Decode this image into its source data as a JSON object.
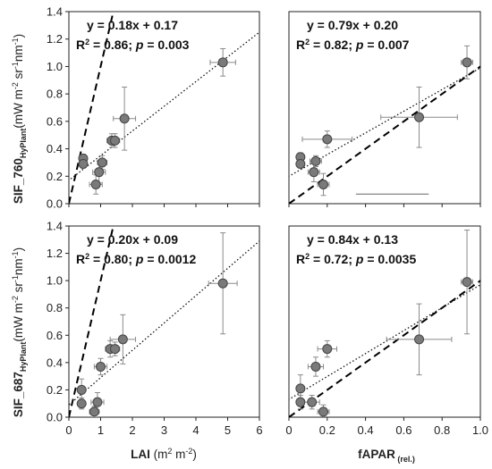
{
  "figure": {
    "y_axis_label_top": {
      "main": "SIF_760",
      "sub": "HyPlant",
      "units": "(mW m",
      "u2": "-2",
      "u3": " sr",
      "u4": "-1",
      "u5": "nm",
      "u6": "-1",
      "u7": ")"
    },
    "y_axis_label_bottom": {
      "main": "SIF_687",
      "sub": "HyPlant",
      "units": "(mW m",
      "u2": "-2",
      "u3": " sr",
      "u4": "-1",
      "u5": "nm",
      "u6": "-1",
      "u7": ")"
    },
    "x_axis_label_left": {
      "main": "LAI",
      "units": " (m",
      "u2": "2",
      "u3": " m",
      "u4": "-2",
      "u5": ")"
    },
    "x_axis_label_right": {
      "main": "fAPAR",
      "sub": " (rel.)"
    }
  },
  "chart_data": [
    {
      "type": "scatter",
      "panel": "top-left",
      "x_key": "LAI",
      "xlim": [
        0,
        6
      ],
      "xticks": [
        0,
        1,
        2,
        3,
        4,
        5,
        6
      ],
      "ylim": [
        0,
        1.4
      ],
      "yticks": [
        "0.0",
        "0.2",
        "0.4",
        "0.6",
        "0.8",
        "1.0",
        "1.2",
        "1.4"
      ],
      "show_x_ticks": false,
      "show_y_ticks": true,
      "equation": "y = 0.18x + 0.17",
      "stats": {
        "r2_prefix": "R",
        "r2_sup": "2",
        "r2_val": " = 0.86; ",
        "p_label": "p",
        "p_val": " = 0.003"
      },
      "one_to_one": true,
      "fit": {
        "slope": 0.18,
        "intercept": 0.17
      },
      "points": [
        {
          "x": 0.45,
          "y": 0.33,
          "xerr": 0.05,
          "yerr": 0.03
        },
        {
          "x": 0.45,
          "y": 0.29,
          "xerr": 0.05,
          "yerr": 0.03
        },
        {
          "x": 0.85,
          "y": 0.14,
          "xerr": 0.2,
          "yerr": 0.07
        },
        {
          "x": 0.95,
          "y": 0.23,
          "xerr": 0.2,
          "yerr": 0.08
        },
        {
          "x": 1.05,
          "y": 0.3,
          "xerr": 0.15,
          "yerr": 0.05
        },
        {
          "x": 1.35,
          "y": 0.46,
          "xerr": 0.15,
          "yerr": 0.05
        },
        {
          "x": 1.45,
          "y": 0.46,
          "xerr": 0.15,
          "yerr": 0.05
        },
        {
          "x": 1.75,
          "y": 0.62,
          "xerr": 0.35,
          "yerr": 0.23
        },
        {
          "x": 4.85,
          "y": 1.03,
          "xerr": 0.4,
          "yerr": 0.1
        }
      ]
    },
    {
      "type": "scatter",
      "panel": "top-right",
      "x_key": "fAPAR",
      "xlim": [
        0,
        1
      ],
      "xticks": [
        "0",
        "0.2",
        "0.4",
        "0.6",
        "0.8",
        "1.0"
      ],
      "ylim": [
        0,
        1.4
      ],
      "show_x_ticks": false,
      "show_y_ticks": false,
      "equation": "y = 0.79x + 0.20",
      "stats": {
        "r2_prefix": "R",
        "r2_sup": "2",
        "r2_val": " = 0.82; ",
        "p_label": "p",
        "p_val": " = 0.007"
      },
      "one_to_one": true,
      "fit": {
        "slope": 0.79,
        "intercept": 0.2
      },
      "extra_segment": {
        "x": [
          0.35,
          0.73
        ],
        "y": [
          0.07,
          0.07
        ]
      },
      "points": [
        {
          "x": 0.06,
          "y": 0.34,
          "xerr": 0.02,
          "yerr": 0.03
        },
        {
          "x": 0.06,
          "y": 0.29,
          "xerr": 0.02,
          "yerr": 0.03
        },
        {
          "x": 0.13,
          "y": 0.23,
          "xerr": 0.03,
          "yerr": 0.07
        },
        {
          "x": 0.14,
          "y": 0.31,
          "xerr": 0.03,
          "yerr": 0.04
        },
        {
          "x": 0.18,
          "y": 0.14,
          "xerr": 0.03,
          "yerr": 0.08
        },
        {
          "x": 0.2,
          "y": 0.47,
          "xerr": 0.13,
          "yerr": 0.06
        },
        {
          "x": 0.68,
          "y": 0.63,
          "xerr": 0.2,
          "yerr": 0.22
        },
        {
          "x": 0.93,
          "y": 1.03,
          "xerr": 0.03,
          "yerr": 0.12
        }
      ]
    },
    {
      "type": "scatter",
      "panel": "bottom-left",
      "x_key": "LAI",
      "xlim": [
        0,
        6
      ],
      "xticks": [
        "0",
        "1",
        "2",
        "3",
        "4",
        "5",
        "6"
      ],
      "ylim": [
        0,
        1.4
      ],
      "yticks": [
        "0.0",
        "0.2",
        "0.4",
        "0.6",
        "0.8",
        "1.0",
        "1.2",
        "1.4"
      ],
      "show_x_ticks": true,
      "show_y_ticks": true,
      "equation": "y = 0.20x + 0.09",
      "stats": {
        "r2_prefix": "R",
        "r2_sup": "2",
        "r2_val": " = 0.80; ",
        "p_label": "p",
        "p_val": " = 0.0012"
      },
      "one_to_one": true,
      "fit": {
        "slope": 0.2,
        "intercept": 0.09
      },
      "points": [
        {
          "x": 0.4,
          "y": 0.2,
          "xerr": 0.05,
          "yerr": 0.08
        },
        {
          "x": 0.4,
          "y": 0.1,
          "xerr": 0.05,
          "yerr": 0.04
        },
        {
          "x": 0.8,
          "y": 0.04,
          "xerr": 0.15,
          "yerr": 0.04
        },
        {
          "x": 0.9,
          "y": 0.11,
          "xerr": 0.2,
          "yerr": 0.07
        },
        {
          "x": 1.0,
          "y": 0.37,
          "xerr": 0.2,
          "yerr": 0.06
        },
        {
          "x": 1.3,
          "y": 0.5,
          "xerr": 0.15,
          "yerr": 0.06
        },
        {
          "x": 1.45,
          "y": 0.5,
          "xerr": 0.15,
          "yerr": 0.05
        },
        {
          "x": 1.7,
          "y": 0.57,
          "xerr": 0.4,
          "yerr": 0.18
        },
        {
          "x": 4.85,
          "y": 0.98,
          "xerr": 0.45,
          "yerr": 0.37
        }
      ]
    },
    {
      "type": "scatter",
      "panel": "bottom-right",
      "x_key": "fAPAR",
      "xlim": [
        0,
        1
      ],
      "xticks": [
        "0",
        "0.2",
        "0.4",
        "0.6",
        "0.8",
        "1.0"
      ],
      "ylim": [
        0,
        1.4
      ],
      "show_x_ticks": true,
      "show_y_ticks": false,
      "equation": "y = 0.84x + 0.13",
      "stats": {
        "r2_prefix": "R",
        "r2_sup": "2",
        "r2_val": " = 0.72; ",
        "p_label": "p",
        "p_val": " = 0.0035"
      },
      "one_to_one": true,
      "fit": {
        "slope": 0.84,
        "intercept": 0.13
      },
      "points": [
        {
          "x": 0.06,
          "y": 0.21,
          "xerr": 0.02,
          "yerr": 0.1
        },
        {
          "x": 0.06,
          "y": 0.11,
          "xerr": 0.02,
          "yerr": 0.05
        },
        {
          "x": 0.12,
          "y": 0.11,
          "xerr": 0.04,
          "yerr": 0.05
        },
        {
          "x": 0.14,
          "y": 0.37,
          "xerr": 0.04,
          "yerr": 0.07
        },
        {
          "x": 0.18,
          "y": 0.04,
          "xerr": 0.03,
          "yerr": 0.05
        },
        {
          "x": 0.2,
          "y": 0.5,
          "xerr": 0.05,
          "yerr": 0.06
        },
        {
          "x": 0.68,
          "y": 0.57,
          "xerr": 0.17,
          "yerr": 0.26
        },
        {
          "x": 0.93,
          "y": 0.99,
          "xerr": 0.03,
          "yerr": 0.38
        }
      ]
    }
  ]
}
